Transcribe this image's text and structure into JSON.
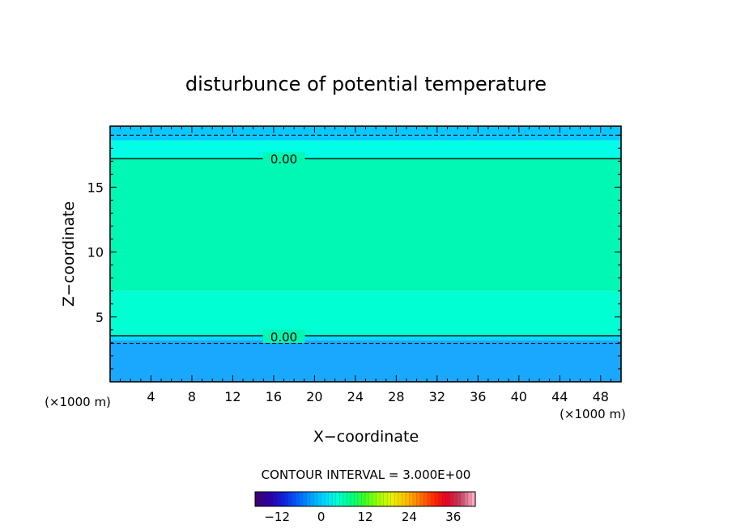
{
  "chart_data": {
    "type": "contour",
    "title": "disturbunce of potential temperature",
    "xlabel": "X−coordinate",
    "ylabel": "Z−coordinate",
    "x_unit": "(×1000 m)",
    "y_unit": "(×1000 m)",
    "xlim": [
      0,
      50
    ],
    "ylim": [
      0,
      19.7
    ],
    "xticks": [
      4,
      8,
      12,
      16,
      20,
      24,
      28,
      32,
      36,
      40,
      44,
      48
    ],
    "yticks": [
      5,
      10,
      15
    ],
    "contour_interval_text": "CONTOUR INTERVAL = 3.000E+00",
    "contour_labels": [
      {
        "text": "0.00",
        "x": 17,
        "z": 17.2
      },
      {
        "text": "0.00",
        "x": 17,
        "z": 3.5
      }
    ],
    "field_bands": [
      {
        "z_from": 0,
        "z_to": 3.2,
        "color": "#1aa8ff"
      },
      {
        "z_from": 3.2,
        "z_to": 3.6,
        "color": "#00dcff"
      },
      {
        "z_from": 3.6,
        "z_to": 7.0,
        "color": "#00ffd2"
      },
      {
        "z_from": 7.0,
        "z_to": 17.2,
        "color": "#00f7b4"
      },
      {
        "z_from": 17.2,
        "z_to": 18.6,
        "color": "#00ffe6"
      },
      {
        "z_from": 18.6,
        "z_to": 19.7,
        "color": "#0ac8ff"
      }
    ],
    "contour_lines": [
      {
        "style": "solid",
        "z": 17.2
      },
      {
        "style": "dashed",
        "z": 19.0
      },
      {
        "style": "solid",
        "z": 3.55
      },
      {
        "style": "dashed",
        "z": 2.95
      }
    ],
    "colorbar": {
      "range": [
        -18,
        42
      ],
      "ticks": [
        -12,
        0,
        12,
        24,
        36
      ],
      "tick_labels": [
        "−12",
        "0",
        "12",
        "24",
        "36"
      ],
      "colors": [
        "#3a0078",
        "#2a00a8",
        "#1020e0",
        "#0060ff",
        "#00a0ff",
        "#00d8ff",
        "#00ffd0",
        "#00ff80",
        "#40ff20",
        "#a0ff00",
        "#e8f000",
        "#ffc000",
        "#ff7800",
        "#ff3000",
        "#e80020",
        "#c04060",
        "#ffaac0"
      ]
    }
  }
}
